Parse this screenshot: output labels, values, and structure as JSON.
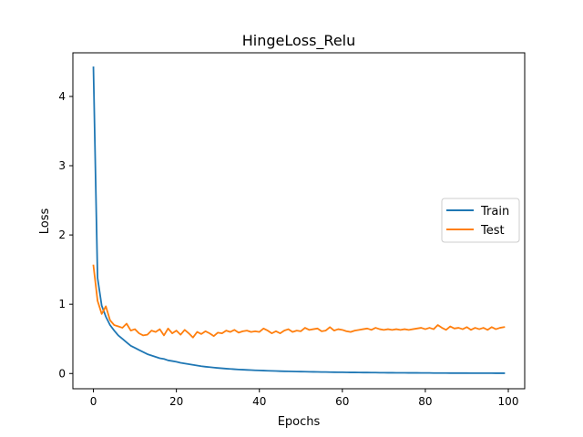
{
  "chart_data": {
    "type": "line",
    "title": "HingeLoss_Relu",
    "xlabel": "Epochs",
    "ylabel": "Loss",
    "xlim": [
      -4.95,
      103.95
    ],
    "ylim": [
      -0.22,
      4.63
    ],
    "xticks": [
      "0",
      "20",
      "40",
      "60",
      "80",
      "100"
    ],
    "yticks": [
      "0",
      "1",
      "2",
      "3",
      "4"
    ],
    "grid": false,
    "legend_position": "center-right",
    "series": [
      {
        "name": "Train",
        "color": "#1f77b4",
        "values": [
          4.42,
          1.38,
          0.98,
          0.82,
          0.7,
          0.62,
          0.55,
          0.5,
          0.45,
          0.4,
          0.37,
          0.34,
          0.31,
          0.28,
          0.26,
          0.24,
          0.22,
          0.21,
          0.19,
          0.18,
          0.17,
          0.155,
          0.145,
          0.135,
          0.125,
          0.115,
          0.105,
          0.098,
          0.092,
          0.086,
          0.08,
          0.075,
          0.07,
          0.066,
          0.062,
          0.058,
          0.055,
          0.052,
          0.049,
          0.046,
          0.044,
          0.042,
          0.04,
          0.038,
          0.036,
          0.034,
          0.032,
          0.031,
          0.03,
          0.028,
          0.027,
          0.026,
          0.025,
          0.024,
          0.023,
          0.022,
          0.021,
          0.02,
          0.019,
          0.018,
          0.018,
          0.017,
          0.016,
          0.016,
          0.015,
          0.014,
          0.014,
          0.013,
          0.013,
          0.012,
          0.012,
          0.011,
          0.011,
          0.01,
          0.01,
          0.01,
          0.009,
          0.009,
          0.009,
          0.008,
          0.008,
          0.008,
          0.007,
          0.007,
          0.007,
          0.007,
          0.006,
          0.006,
          0.006,
          0.006,
          0.006,
          0.005,
          0.005,
          0.005,
          0.005,
          0.005,
          0.005,
          0.004,
          0.004,
          0.004
        ]
      },
      {
        "name": "Test",
        "color": "#ff7f0e",
        "values": [
          1.56,
          1.05,
          0.86,
          0.97,
          0.77,
          0.7,
          0.68,
          0.66,
          0.72,
          0.62,
          0.64,
          0.58,
          0.55,
          0.56,
          0.62,
          0.6,
          0.64,
          0.55,
          0.65,
          0.58,
          0.62,
          0.56,
          0.63,
          0.58,
          0.52,
          0.6,
          0.57,
          0.61,
          0.58,
          0.54,
          0.59,
          0.58,
          0.62,
          0.6,
          0.63,
          0.59,
          0.61,
          0.62,
          0.6,
          0.61,
          0.6,
          0.65,
          0.62,
          0.58,
          0.61,
          0.58,
          0.62,
          0.64,
          0.6,
          0.62,
          0.61,
          0.66,
          0.63,
          0.64,
          0.65,
          0.61,
          0.62,
          0.67,
          0.62,
          0.64,
          0.63,
          0.61,
          0.6,
          0.62,
          0.63,
          0.64,
          0.65,
          0.63,
          0.66,
          0.64,
          0.63,
          0.64,
          0.63,
          0.64,
          0.63,
          0.64,
          0.63,
          0.64,
          0.65,
          0.66,
          0.64,
          0.66,
          0.64,
          0.7,
          0.66,
          0.63,
          0.68,
          0.65,
          0.66,
          0.64,
          0.67,
          0.63,
          0.66,
          0.64,
          0.66,
          0.63,
          0.67,
          0.64,
          0.66,
          0.67
        ]
      }
    ]
  }
}
